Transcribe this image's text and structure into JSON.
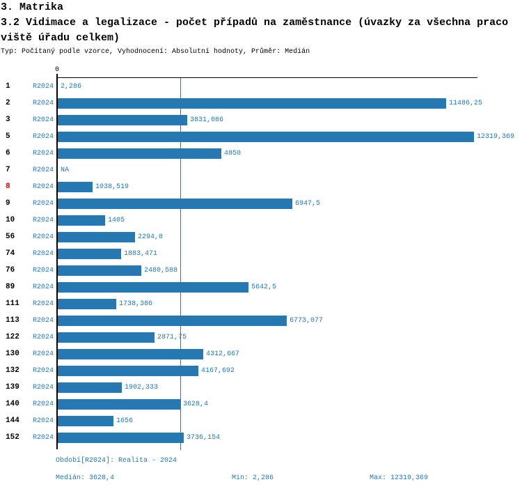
{
  "header": {
    "title_line1": "3. Matrika",
    "title_line2": "3.2 Vidimace a legalizace - počet případů na zaměstnance (úvazky za všechna praco",
    "title_line3": "viště úřadu celkem)",
    "subtitle": "Typ: Počítaný podle vzorce, Vyhodnocení: Absolutní hodnoty, Průměr: Medián"
  },
  "chart_data": {
    "type": "bar",
    "orientation": "horizontal",
    "title": "3.2 Vidimace a legalizace - počet případů na zaměstnance (úvazky za všechna pracoviště úřadu celkem)",
    "axis_zero_label": "0",
    "series_label": "R2024",
    "categories": [
      "1",
      "2",
      "3",
      "5",
      "6",
      "7",
      "8",
      "9",
      "10",
      "56",
      "74",
      "76",
      "89",
      "111",
      "113",
      "122",
      "130",
      "132",
      "139",
      "140",
      "144",
      "152"
    ],
    "values": [
      2.286,
      11486.25,
      3831.086,
      12319.369,
      4850,
      null,
      1038.519,
      6947.5,
      1405,
      2294.8,
      1883.471,
      2480.588,
      5642.5,
      1738.386,
      6773.077,
      2871.75,
      4312.667,
      4167.692,
      1902.333,
      3628.4,
      1656,
      3736.154
    ],
    "value_labels": [
      "2,286",
      "11486,25",
      "3831,086",
      "12319,369",
      "4850",
      "NA",
      "1038,519",
      "6947,5",
      "1405",
      "2294,8",
      "1883,471",
      "2480,588",
      "5642,5",
      "1738,386",
      "6773,077",
      "2871,75",
      "4312,667",
      "4167,692",
      "1902,333",
      "3628,4",
      "1656",
      "3736,154"
    ],
    "highlighted_category": "8",
    "median": 3628.4,
    "min": 2.286,
    "max": 12319.369,
    "xlim": [
      0,
      12319.369
    ],
    "legend_position": "none",
    "grid": false,
    "bar_color": "#2578b2",
    "text_color": "#2578b2",
    "highlight_color": "#dd0000"
  },
  "footer": {
    "period": "Období[R2024]: Realita - 2024",
    "median_stat": "Medián: 3628,4",
    "min_stat": "Min: 2,286",
    "max_stat": "Max: 12319,369"
  }
}
